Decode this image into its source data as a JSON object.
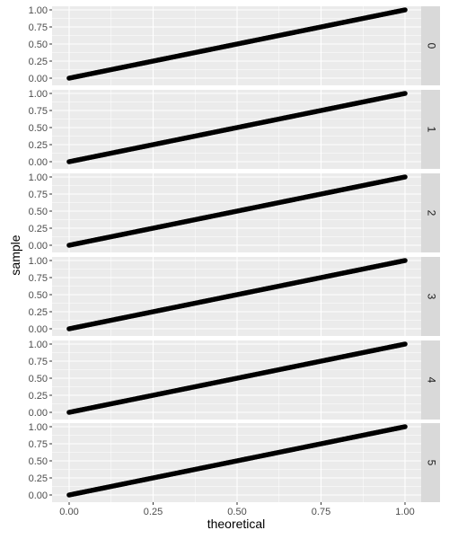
{
  "chart_data": {
    "type": "scatter",
    "xlabel": "theoretical",
    "ylabel": "sample",
    "xlim": [
      0,
      1
    ],
    "ylim": [
      0,
      1
    ],
    "x_ticks": [
      "0.00",
      "0.25",
      "0.50",
      "0.75",
      "1.00"
    ],
    "y_ticks": [
      "0.00",
      "0.25",
      "0.50",
      "0.75",
      "1.00"
    ],
    "grid": true,
    "facets": [
      {
        "label": "0",
        "points": [
          [
            0.0,
            0.0
          ],
          [
            0.1,
            0.1
          ],
          [
            0.2,
            0.2
          ],
          [
            0.3,
            0.3
          ],
          [
            0.4,
            0.4
          ],
          [
            0.5,
            0.5
          ],
          [
            0.6,
            0.6
          ],
          [
            0.7,
            0.7
          ],
          [
            0.8,
            0.8
          ],
          [
            0.9,
            0.9
          ],
          [
            1.0,
            1.0
          ]
        ]
      },
      {
        "label": "1",
        "points": [
          [
            0.0,
            0.0
          ],
          [
            0.1,
            0.1
          ],
          [
            0.2,
            0.2
          ],
          [
            0.3,
            0.3
          ],
          [
            0.4,
            0.4
          ],
          [
            0.5,
            0.5
          ],
          [
            0.6,
            0.6
          ],
          [
            0.7,
            0.7
          ],
          [
            0.8,
            0.8
          ],
          [
            0.9,
            0.9
          ],
          [
            1.0,
            1.0
          ]
        ]
      },
      {
        "label": "2",
        "points": [
          [
            0.0,
            0.0
          ],
          [
            0.1,
            0.1
          ],
          [
            0.2,
            0.2
          ],
          [
            0.3,
            0.3
          ],
          [
            0.4,
            0.4
          ],
          [
            0.5,
            0.5
          ],
          [
            0.6,
            0.6
          ],
          [
            0.7,
            0.7
          ],
          [
            0.8,
            0.8
          ],
          [
            0.9,
            0.9
          ],
          [
            1.0,
            1.0
          ]
        ]
      },
      {
        "label": "3",
        "points": [
          [
            0.0,
            0.0
          ],
          [
            0.1,
            0.1
          ],
          [
            0.2,
            0.2
          ],
          [
            0.3,
            0.3
          ],
          [
            0.4,
            0.4
          ],
          [
            0.5,
            0.5
          ],
          [
            0.6,
            0.6
          ],
          [
            0.7,
            0.7
          ],
          [
            0.8,
            0.8
          ],
          [
            0.9,
            0.9
          ],
          [
            1.0,
            1.0
          ]
        ]
      },
      {
        "label": "4",
        "points": [
          [
            0.0,
            0.0
          ],
          [
            0.1,
            0.1
          ],
          [
            0.2,
            0.2
          ],
          [
            0.3,
            0.3
          ],
          [
            0.4,
            0.4
          ],
          [
            0.5,
            0.5
          ],
          [
            0.6,
            0.6
          ],
          [
            0.7,
            0.7
          ],
          [
            0.8,
            0.8
          ],
          [
            0.9,
            0.9
          ],
          [
            1.0,
            1.0
          ]
        ]
      },
      {
        "label": "5",
        "points": [
          [
            0.0,
            0.0
          ],
          [
            0.1,
            0.1
          ],
          [
            0.2,
            0.2
          ],
          [
            0.3,
            0.3
          ],
          [
            0.4,
            0.4
          ],
          [
            0.5,
            0.5
          ],
          [
            0.6,
            0.6
          ],
          [
            0.7,
            0.7
          ],
          [
            0.8,
            0.8
          ],
          [
            0.9,
            0.9
          ],
          [
            1.0,
            1.0
          ]
        ]
      }
    ]
  },
  "colors": {
    "panel_background": "#ebebeb",
    "grid_major": "#ffffff",
    "strip_background": "#d9d9d9",
    "points": "#000000"
  }
}
